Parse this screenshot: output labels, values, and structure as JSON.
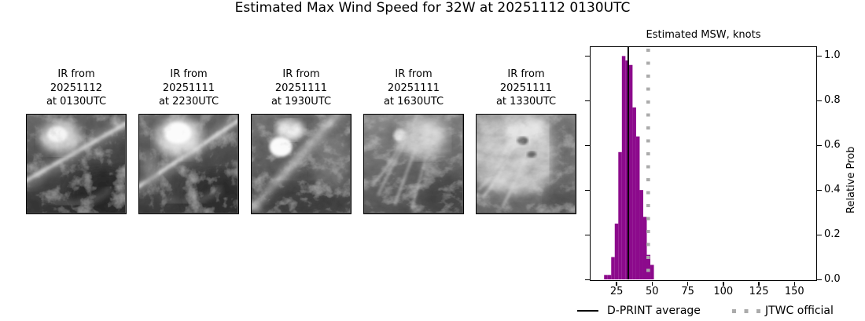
{
  "title": "Estimated Max Wind Speed for 32W at 20251112 0130UTC",
  "ir_panels": [
    {
      "line1": "IR from",
      "line2": "20251112",
      "line3": "at 0130UTC"
    },
    {
      "line1": "IR from",
      "line2": "20251111",
      "line3": "at 2230UTC"
    },
    {
      "line1": "IR from",
      "line2": "20251111",
      "line3": "at 1930UTC"
    },
    {
      "line1": "IR from",
      "line2": "20251111",
      "line3": "at 1630UTC"
    },
    {
      "line1": "IR from",
      "line2": "20251111",
      "line3": "at 1330UTC"
    }
  ],
  "chart_data": {
    "type": "bar",
    "title": "Estimated MSW, knots",
    "xlabel": "",
    "ylabel": "Relative Prob",
    "xlim": [
      7,
      165
    ],
    "ylim": [
      0,
      1.04
    ],
    "grid": false,
    "legend_position": "bottom",
    "xtick_labels": [
      "25",
      "50",
      "75",
      "100",
      "125",
      "150"
    ],
    "ytick_labels": [
      "1.0",
      "0.8",
      "0.6",
      "0.4",
      "0.2",
      "0.0"
    ],
    "ytick_values": [
      1.0,
      0.8,
      0.6,
      0.4,
      0.2,
      0.0
    ],
    "histogram": {
      "bin_start_knots": 16.5,
      "bin_width_knots": 2.5,
      "heights": [
        0.02,
        0.02,
        0.1,
        0.25,
        0.57,
        1.0,
        0.98,
        0.96,
        0.77,
        0.64,
        0.4,
        0.28,
        0.11,
        0.065
      ],
      "color": "#8c0a8c"
    },
    "dprint_average_knots": 33.5,
    "jtwc_official_knots": 47.5,
    "legend": [
      {
        "label": "D-PRINT average",
        "style": "solid",
        "color": "#000000"
      },
      {
        "label": "JTWC official",
        "style": "dotted",
        "color": "#ababab"
      }
    ]
  }
}
